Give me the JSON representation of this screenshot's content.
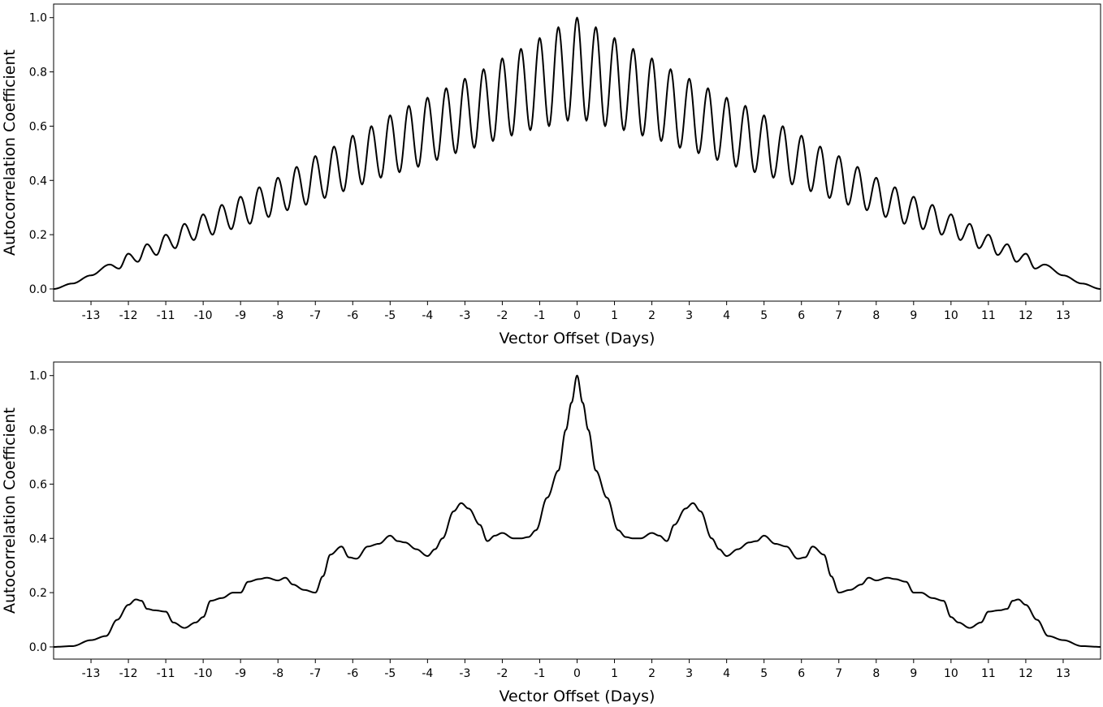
{
  "chart_data": [
    {
      "type": "line",
      "xlabel": "Vector Offset (Days)",
      "ylabel": "Autocorrelation Coefficient",
      "xlim": [
        -14,
        14
      ],
      "ylim": [
        -0.045,
        1.05
      ],
      "xticks": [
        -13,
        -12,
        -11,
        -10,
        -9,
        -8,
        -7,
        -6,
        -5,
        -4,
        -3,
        -2,
        -1,
        0,
        1,
        2,
        3,
        4,
        5,
        6,
        7,
        8,
        9,
        10,
        11,
        12,
        13
      ],
      "yticks": [
        0.0,
        0.2,
        0.4,
        0.6,
        0.8,
        1.0
      ],
      "ytick_labels": [
        "0.0",
        "0.2",
        "0.4",
        "0.6",
        "0.8",
        "1.0"
      ],
      "grid": false,
      "series": [
        {
          "color": "#000000",
          "x": [
            -14.0,
            -13.5,
            -13.0,
            -12.5,
            -12.25,
            -12.0,
            -11.75,
            -11.5,
            -11.25,
            -11.0,
            -10.75,
            -10.5,
            -10.25,
            -10.0,
            -9.75,
            -9.5,
            -9.25,
            -9.0,
            -8.75,
            -8.5,
            -8.25,
            -8.0,
            -7.75,
            -7.5,
            -7.25,
            -7.0,
            -6.75,
            -6.5,
            -6.25,
            -6.0,
            -5.75,
            -5.5,
            -5.25,
            -5.0,
            -4.75,
            -4.5,
            -4.25,
            -4.0,
            -3.75,
            -3.5,
            -3.25,
            -3.0,
            -2.75,
            -2.5,
            -2.25,
            -2.0,
            -1.75,
            -1.5,
            -1.25,
            -1.0,
            -0.75,
            -0.5,
            -0.25,
            0.0,
            0.25,
            0.5,
            0.75,
            1.0,
            1.25,
            1.5,
            1.75,
            2.0,
            2.25,
            2.5,
            2.75,
            3.0,
            3.25,
            3.5,
            3.75,
            4.0,
            4.25,
            4.5,
            4.75,
            5.0,
            5.25,
            5.5,
            5.75,
            6.0,
            6.25,
            6.5,
            6.75,
            7.0,
            7.25,
            7.5,
            7.75,
            8.0,
            8.25,
            8.5,
            8.75,
            9.0,
            9.25,
            9.5,
            9.75,
            10.0,
            10.25,
            10.5,
            10.75,
            11.0,
            11.25,
            11.5,
            11.75,
            12.0,
            12.25,
            12.5,
            13.0,
            13.5,
            14.0
          ],
          "y": [
            0.0,
            0.02,
            0.05,
            0.09,
            0.075,
            0.13,
            0.1,
            0.165,
            0.125,
            0.2,
            0.15,
            0.24,
            0.18,
            0.275,
            0.2,
            0.31,
            0.22,
            0.34,
            0.24,
            0.375,
            0.265,
            0.41,
            0.29,
            0.45,
            0.31,
            0.49,
            0.335,
            0.525,
            0.36,
            0.565,
            0.385,
            0.6,
            0.41,
            0.64,
            0.43,
            0.675,
            0.45,
            0.705,
            0.475,
            0.74,
            0.5,
            0.775,
            0.52,
            0.81,
            0.545,
            0.85,
            0.565,
            0.885,
            0.585,
            0.925,
            0.6,
            0.965,
            0.62,
            1.0,
            0.62,
            0.965,
            0.6,
            0.925,
            0.585,
            0.885,
            0.565,
            0.85,
            0.545,
            0.81,
            0.52,
            0.775,
            0.5,
            0.74,
            0.475,
            0.705,
            0.45,
            0.675,
            0.43,
            0.64,
            0.41,
            0.6,
            0.385,
            0.565,
            0.36,
            0.525,
            0.335,
            0.49,
            0.31,
            0.45,
            0.29,
            0.41,
            0.265,
            0.375,
            0.24,
            0.34,
            0.22,
            0.31,
            0.2,
            0.275,
            0.18,
            0.24,
            0.15,
            0.2,
            0.125,
            0.165,
            0.1,
            0.13,
            0.075,
            0.09,
            0.05,
            0.02,
            0.0
          ]
        }
      ]
    },
    {
      "type": "line",
      "xlabel": "Vector Offset (Days)",
      "ylabel": "Autocorrelation Coefficient",
      "xlim": [
        -14,
        14
      ],
      "ylim": [
        -0.045,
        1.05
      ],
      "xticks": [
        -13,
        -12,
        -11,
        -10,
        -9,
        -8,
        -7,
        -6,
        -5,
        -4,
        -3,
        -2,
        -1,
        0,
        1,
        2,
        3,
        4,
        5,
        6,
        7,
        8,
        9,
        10,
        11,
        12,
        13
      ],
      "yticks": [
        0.0,
        0.2,
        0.4,
        0.6,
        0.8,
        1.0
      ],
      "ytick_labels": [
        "0.0",
        "0.2",
        "0.4",
        "0.6",
        "0.8",
        "1.0"
      ],
      "grid": false,
      "series": [
        {
          "color": "#000000",
          "x": [
            -14.0,
            -13.5,
            -13.0,
            -12.6,
            -12.3,
            -12.0,
            -11.8,
            -11.65,
            -11.5,
            -11.3,
            -11.0,
            -10.8,
            -10.5,
            -10.2,
            -10.0,
            -9.8,
            -9.5,
            -9.2,
            -9.0,
            -8.8,
            -8.5,
            -8.3,
            -8.0,
            -7.8,
            -7.6,
            -7.3,
            -7.0,
            -6.8,
            -6.6,
            -6.3,
            -6.1,
            -5.9,
            -5.6,
            -5.3,
            -5.0,
            -4.8,
            -4.6,
            -4.3,
            -4.0,
            -3.8,
            -3.6,
            -3.3,
            -3.1,
            -2.9,
            -2.6,
            -2.4,
            -2.2,
            -2.0,
            -1.7,
            -1.5,
            -1.3,
            -1.1,
            -0.8,
            -0.5,
            -0.3,
            -0.15,
            0.0,
            0.15,
            0.3,
            0.5,
            0.8,
            1.1,
            1.3,
            1.5,
            1.7,
            2.0,
            2.2,
            2.4,
            2.6,
            2.9,
            3.1,
            3.3,
            3.6,
            3.8,
            4.0,
            4.3,
            4.6,
            4.8,
            5.0,
            5.3,
            5.6,
            5.9,
            6.1,
            6.3,
            6.6,
            6.8,
            7.0,
            7.3,
            7.6,
            7.8,
            8.0,
            8.3,
            8.5,
            8.8,
            9.0,
            9.2,
            9.5,
            9.8,
            10.0,
            10.2,
            10.5,
            10.8,
            11.0,
            11.3,
            11.5,
            11.65,
            11.8,
            12.0,
            12.3,
            12.6,
            13.0,
            13.5,
            14.0
          ],
          "y": [
            0.0,
            0.003,
            0.025,
            0.04,
            0.1,
            0.155,
            0.175,
            0.17,
            0.14,
            0.135,
            0.13,
            0.09,
            0.07,
            0.09,
            0.11,
            0.17,
            0.18,
            0.2,
            0.2,
            0.24,
            0.25,
            0.255,
            0.245,
            0.255,
            0.23,
            0.21,
            0.2,
            0.26,
            0.34,
            0.37,
            0.33,
            0.325,
            0.37,
            0.38,
            0.41,
            0.39,
            0.385,
            0.36,
            0.335,
            0.36,
            0.4,
            0.5,
            0.53,
            0.51,
            0.45,
            0.39,
            0.41,
            0.42,
            0.4,
            0.4,
            0.405,
            0.43,
            0.55,
            0.65,
            0.8,
            0.9,
            1.0,
            0.9,
            0.8,
            0.65,
            0.55,
            0.43,
            0.405,
            0.4,
            0.4,
            0.42,
            0.41,
            0.39,
            0.45,
            0.51,
            0.53,
            0.5,
            0.4,
            0.36,
            0.335,
            0.36,
            0.385,
            0.39,
            0.41,
            0.38,
            0.37,
            0.325,
            0.33,
            0.37,
            0.34,
            0.26,
            0.2,
            0.21,
            0.23,
            0.255,
            0.245,
            0.255,
            0.25,
            0.24,
            0.2,
            0.2,
            0.18,
            0.17,
            0.11,
            0.09,
            0.07,
            0.09,
            0.13,
            0.135,
            0.14,
            0.17,
            0.175,
            0.155,
            0.1,
            0.04,
            0.025,
            0.003,
            0.0
          ]
        }
      ]
    }
  ]
}
